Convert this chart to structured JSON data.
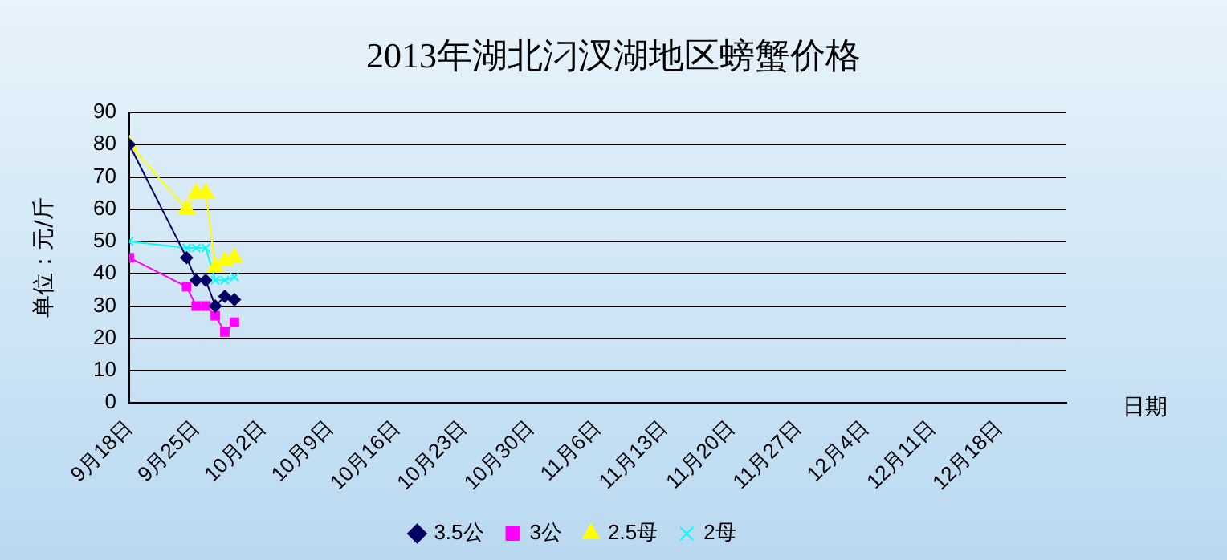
{
  "chart_data": {
    "type": "line",
    "title": "2013年湖北汈汊湖地区螃蟹价格",
    "xlabel": "日期",
    "ylabel": "单位：元/斤",
    "x": [
      "2013-09-18",
      "2013-09-24",
      "2013-09-25",
      "2013-09-26",
      "2013-09-27",
      "2013-09-28",
      "2013-09-29"
    ],
    "series": [
      {
        "name": "3.5公",
        "color": "#000066",
        "marker": "diamond",
        "values": [
          80,
          45,
          38,
          38,
          30,
          33,
          32
        ]
      },
      {
        "name": "3公",
        "color": "#ff00ff",
        "marker": "square",
        "values": [
          45,
          36,
          30,
          30,
          27,
          22,
          25
        ]
      },
      {
        "name": "2.5母",
        "color": "#ffff00",
        "marker": "triangle",
        "values": [
          80,
          60,
          65,
          65,
          42,
          44,
          45
        ]
      },
      {
        "name": "2母",
        "color": "#00ffff",
        "marker": "cross",
        "values": [
          50,
          48,
          48,
          48,
          38,
          38,
          39
        ]
      }
    ],
    "xlim": [
      "2013-09-18",
      "2013-12-25"
    ],
    "xticks": [
      {
        "value": "2013-09-18",
        "label": "9月18日"
      },
      {
        "value": "2013-09-25",
        "label": "9月25日"
      },
      {
        "value": "2013-10-02",
        "label": "10月2日"
      },
      {
        "value": "2013-10-09",
        "label": "10月9日"
      },
      {
        "value": "2013-10-16",
        "label": "10月16日"
      },
      {
        "value": "2013-10-23",
        "label": "10月23日"
      },
      {
        "value": "2013-10-30",
        "label": "10月30日"
      },
      {
        "value": "2013-11-06",
        "label": "11月6日"
      },
      {
        "value": "2013-11-13",
        "label": "11月13日"
      },
      {
        "value": "2013-11-20",
        "label": "11月20日"
      },
      {
        "value": "2013-11-27",
        "label": "11月27日"
      },
      {
        "value": "2013-12-04",
        "label": "12月4日"
      },
      {
        "value": "2013-12-11",
        "label": "12月11日"
      },
      {
        "value": "2013-12-18",
        "label": "12月18日"
      }
    ],
    "ylim": [
      0,
      90
    ],
    "yticks": [
      0,
      10,
      20,
      30,
      40,
      50,
      60,
      70,
      80,
      90
    ],
    "grid": "y",
    "legend": "bottom",
    "line_style": "solid"
  }
}
